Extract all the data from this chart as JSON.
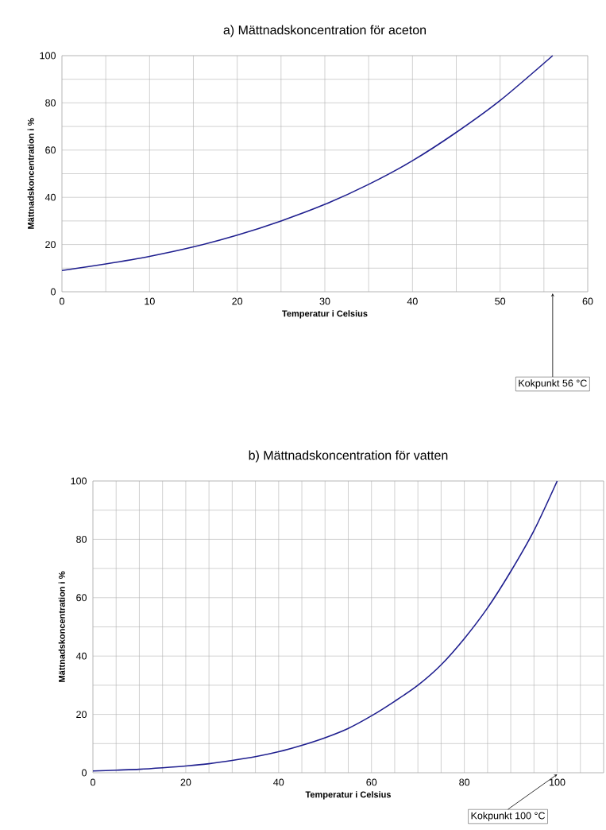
{
  "chart_data": [
    {
      "type": "line",
      "title": "a) Mättnadskoncentration för aceton",
      "xlabel": "Temperatur i Celsius",
      "ylabel": "Mättnadskoncentration i %",
      "x": [
        0,
        5,
        10,
        15,
        20,
        25,
        30,
        35,
        40,
        45,
        50,
        56
      ],
      "series": [
        {
          "color": "#1f1f8f",
          "values": [
            9,
            11.8,
            15,
            19,
            24,
            30,
            37,
            45.5,
            55.5,
            67.5,
            81,
            100
          ]
        }
      ],
      "xlim": [
        0,
        60
      ],
      "ylim": [
        0,
        100
      ],
      "xticks": [
        0,
        {
          "value": 5,
          "label": null
        },
        10,
        {
          "value": 15,
          "label": null
        },
        20,
        {
          "value": 25,
          "label": null
        },
        30,
        {
          "value": 35,
          "label": null
        },
        40,
        {
          "value": 45,
          "label": null
        },
        50,
        {
          "value": 55,
          "label": null
        },
        60
      ],
      "yticks": [
        0,
        {
          "value": 10,
          "label": null
        },
        20,
        {
          "value": 30,
          "label": null
        },
        40,
        {
          "value": 50,
          "label": null
        },
        60,
        {
          "value": 70,
          "label": null
        },
        80,
        {
          "value": 90,
          "label": null
        },
        100
      ],
      "grid": true,
      "annotations": [
        "Kokpunkt 56 °C"
      ]
    },
    {
      "type": "line",
      "title": "b) Mättnadskoncentration för vatten",
      "xlabel": "Temperatur i Celsius",
      "ylabel": "Mättnadskoncentration i %",
      "x": [
        0,
        5,
        10,
        15,
        20,
        25,
        30,
        35,
        40,
        45,
        50,
        55,
        60,
        65,
        70,
        75,
        80,
        85,
        90,
        95,
        100
      ],
      "series": [
        {
          "color": "#1f1f8f",
          "values": [
            0.6,
            0.9,
            1.2,
            1.7,
            2.3,
            3.1,
            4.2,
            5.5,
            7.2,
            9.4,
            12,
            15.2,
            19.5,
            24.5,
            30,
            37,
            46,
            56.5,
            69,
            83,
            100
          ]
        }
      ],
      "xlim": [
        0,
        110
      ],
      "ylim": [
        0,
        100
      ],
      "xticks": [
        0,
        {
          "value": 5,
          "label": null
        },
        {
          "value": 10,
          "label": null
        },
        {
          "value": 15,
          "label": null
        },
        20,
        {
          "value": 25,
          "label": null
        },
        {
          "value": 30,
          "label": null
        },
        {
          "value": 35,
          "label": null
        },
        40,
        {
          "value": 45,
          "label": null
        },
        {
          "value": 50,
          "label": null
        },
        {
          "value": 55,
          "label": null
        },
        60,
        {
          "value": 65,
          "label": null
        },
        {
          "value": 70,
          "label": null
        },
        {
          "value": 75,
          "label": null
        },
        80,
        {
          "value": 85,
          "label": null
        },
        {
          "value": 90,
          "label": null
        },
        {
          "value": 95,
          "label": null
        },
        100,
        {
          "value": 105,
          "label": null
        },
        {
          "value": 110,
          "label": null
        }
      ],
      "yticks": [
        0,
        {
          "value": 10,
          "label": null
        },
        20,
        {
          "value": 30,
          "label": null
        },
        40,
        {
          "value": 50,
          "label": null
        },
        60,
        {
          "value": 70,
          "label": null
        },
        80,
        {
          "value": 90,
          "label": null
        },
        100
      ],
      "grid": true,
      "annotations": [
        "Kokpunkt 100 °C"
      ]
    }
  ]
}
